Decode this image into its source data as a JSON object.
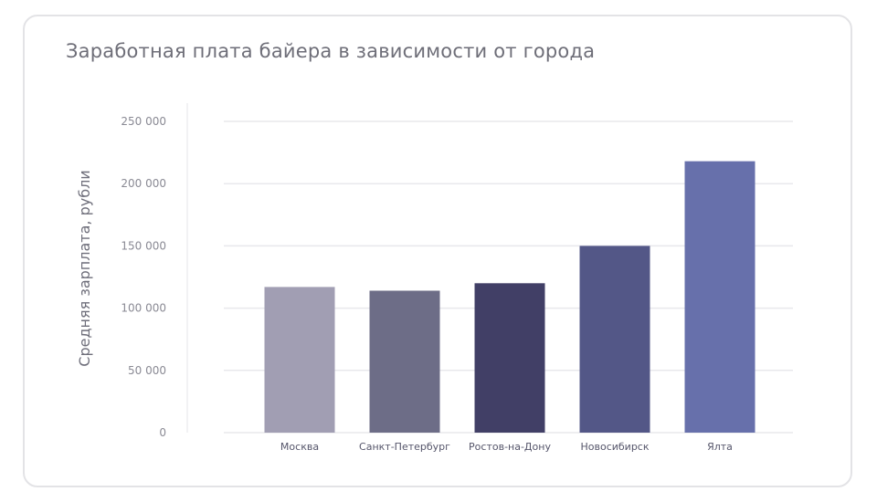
{
  "chart_data": {
    "type": "bar",
    "title": "Заработная плата байера в зависимости от города",
    "xlabel": "",
    "ylabel": "Средняя зарплата, рубли",
    "ylim": [
      0,
      250000
    ],
    "yticks": [
      0,
      50000,
      100000,
      150000,
      200000,
      250000
    ],
    "ytick_labels": [
      "0",
      "50 000",
      "100 000",
      "150 000",
      "200 000",
      "250 000"
    ],
    "grid": true,
    "categories": [
      "Москва",
      "Санкт-Петербург",
      "Ростов-на-Дону",
      "Новосибирск",
      "Ялта"
    ],
    "values": [
      117000,
      114000,
      120000,
      150000,
      218000
    ],
    "colors": [
      "#a19eb3",
      "#6d6d87",
      "#413f66",
      "#535787",
      "#6770ab"
    ]
  }
}
